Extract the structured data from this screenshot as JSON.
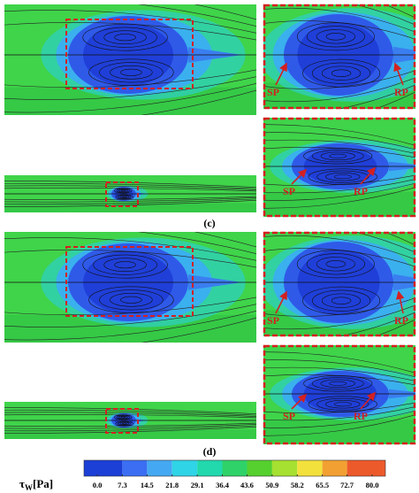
{
  "panel_c": {
    "label": "(c)",
    "zoom_top": {
      "left": "SP",
      "right": "RP"
    },
    "zoom_bottom": {
      "left": "SP",
      "right": "RP"
    }
  },
  "panel_d": {
    "label": "(d)",
    "zoom_top": {
      "left": "SP",
      "right": "RP"
    },
    "zoom_bottom": {
      "left": "SP",
      "right": "RP"
    }
  },
  "colorbar": {
    "symbol": "τ",
    "subscript": "W",
    "unit": "[Pa]",
    "ticks": [
      {
        "value": 0,
        "label": "0.0"
      },
      {
        "value": 7.3,
        "label": "7.3"
      },
      {
        "value": 14.5,
        "label": "14.5"
      },
      {
        "value": 21.8,
        "label": "21.8"
      },
      {
        "value": 29.1,
        "label": "29.1"
      },
      {
        "value": 36.4,
        "label": "36.4"
      },
      {
        "value": 43.6,
        "label": "43.6"
      },
      {
        "value": 50.9,
        "label": "50.9"
      },
      {
        "value": 58.2,
        "label": "58.2"
      },
      {
        "value": 65.5,
        "label": "65.5"
      },
      {
        "value": 72.7,
        "label": "72.7"
      },
      {
        "value": 80,
        "label": "80.0"
      }
    ],
    "colors": [
      "#1c3fd6",
      "#3b6ef2",
      "#45a8f2",
      "#2fd4e6",
      "#22d8ad",
      "#2fd268",
      "#55d02e",
      "#a6e030",
      "#f2e03c",
      "#f2a032",
      "#ec5a2c"
    ]
  }
}
